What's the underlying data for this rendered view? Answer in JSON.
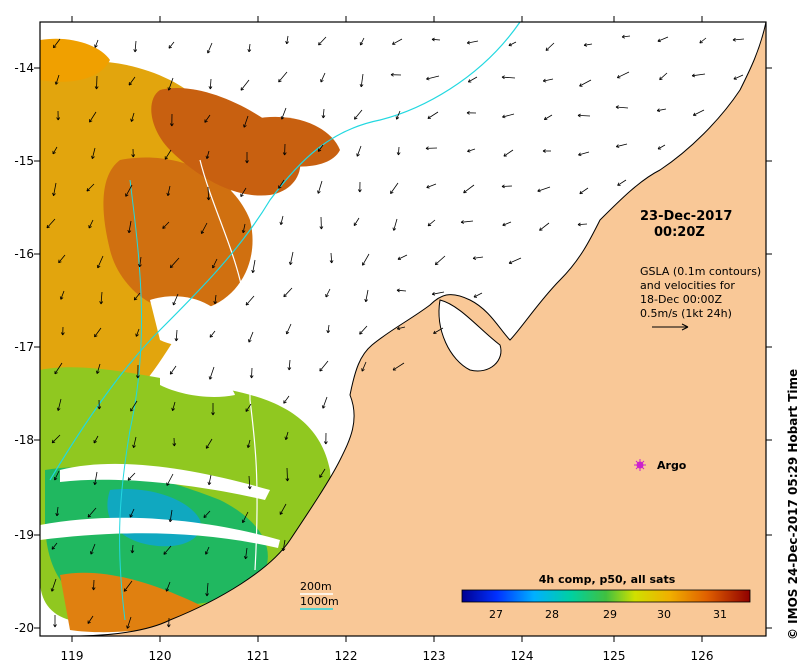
{
  "map": {
    "timestamp_line1": "23-Dec-2017",
    "timestamp_line2": "00:20Z",
    "gsla_line1": "GSLA (0.1m contours)",
    "gsla_line2": "and velocities for",
    "gsla_line3": "18-Dec 00:00Z",
    "gsla_line4": "0.5m/s (1kt 24h)",
    "argo_label": "Argo",
    "depth_200": "200m",
    "depth_1000": "1000m",
    "colorbar_title": "4h comp, p50, all sats",
    "colorbar_ticks": [
      "27",
      "28",
      "29",
      "30",
      "31"
    ],
    "credit": "© IMOS 24-Dec-2017 05:29 Hobart Time",
    "x_ticks": [
      "119",
      "120",
      "121",
      "122",
      "123",
      "124",
      "125",
      "126"
    ],
    "y_ticks": [
      "-14",
      "-15",
      "-16",
      "-17",
      "-18",
      "-19",
      "-20"
    ],
    "colors": {
      "land": "#f9c897",
      "coast": "#000000",
      "argo": "#cc22cc",
      "iso200": "#ffffff",
      "iso1000": "#22d8e0"
    }
  }
}
